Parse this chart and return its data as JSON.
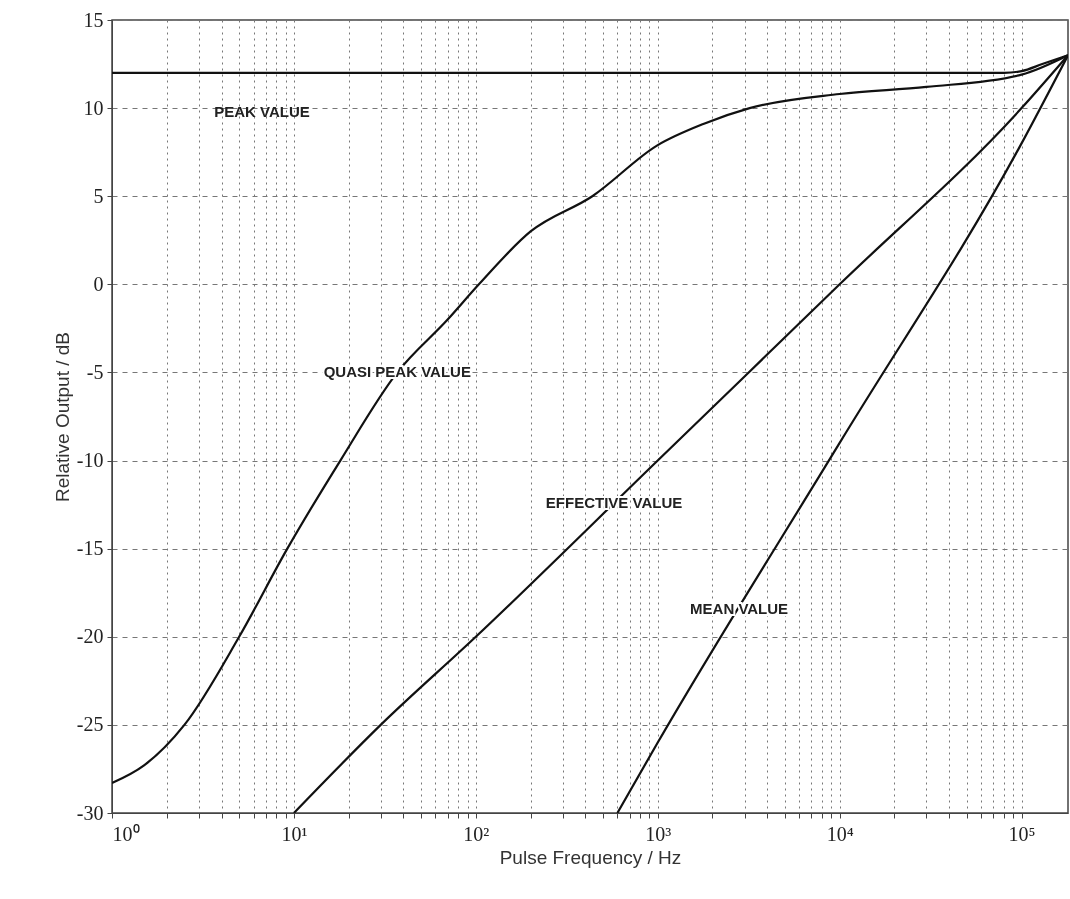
{
  "chart_data": {
    "type": "line",
    "xlabel": "Pulse Frequency / Hz",
    "ylabel": "Relative Output / dB",
    "log": "x",
    "grid": true,
    "line_style": "solid",
    "marker": "none",
    "xlim": [
      1,
      180000
    ],
    "ylim": [
      -30,
      15
    ],
    "xticks": [
      {
        "value": 1,
        "label": "10⁰"
      },
      {
        "value": 2,
        "label": null
      },
      {
        "value": 3,
        "label": null
      },
      {
        "value": 4,
        "label": null
      },
      {
        "value": 5,
        "label": null
      },
      {
        "value": 6,
        "label": null
      },
      {
        "value": 7,
        "label": null
      },
      {
        "value": 8,
        "label": null
      },
      {
        "value": 9,
        "label": null
      },
      {
        "value": 10,
        "label": "10¹"
      },
      {
        "value": 20,
        "label": null
      },
      {
        "value": 30,
        "label": null
      },
      {
        "value": 40,
        "label": null
      },
      {
        "value": 50,
        "label": null
      },
      {
        "value": 60,
        "label": null
      },
      {
        "value": 70,
        "label": null
      },
      {
        "value": 80,
        "label": null
      },
      {
        "value": 90,
        "label": null
      },
      {
        "value": 100,
        "label": "10²"
      },
      {
        "value": 200,
        "label": null
      },
      {
        "value": 300,
        "label": null
      },
      {
        "value": 400,
        "label": null
      },
      {
        "value": 500,
        "label": null
      },
      {
        "value": 600,
        "label": null
      },
      {
        "value": 700,
        "label": null
      },
      {
        "value": 800,
        "label": null
      },
      {
        "value": 900,
        "label": null
      },
      {
        "value": 1000,
        "label": "10³"
      },
      {
        "value": 2000,
        "label": null
      },
      {
        "value": 3000,
        "label": null
      },
      {
        "value": 4000,
        "label": null
      },
      {
        "value": 5000,
        "label": null
      },
      {
        "value": 6000,
        "label": null
      },
      {
        "value": 7000,
        "label": null
      },
      {
        "value": 8000,
        "label": null
      },
      {
        "value": 9000,
        "label": null
      },
      {
        "value": 10000,
        "label": "10⁴"
      },
      {
        "value": 20000,
        "label": null
      },
      {
        "value": 30000,
        "label": null
      },
      {
        "value": 40000,
        "label": null
      },
      {
        "value": 50000,
        "label": null
      },
      {
        "value": 60000,
        "label": null
      },
      {
        "value": 70000,
        "label": null
      },
      {
        "value": 80000,
        "label": null
      },
      {
        "value": 90000,
        "label": null
      },
      {
        "value": 100000,
        "label": "10⁵"
      }
    ],
    "yticks": [
      -30,
      -25,
      -20,
      -15,
      -10,
      -5,
      0,
      5,
      10,
      15
    ],
    "series": [
      {
        "color": "#111111",
        "x": [
          1,
          80000,
          100000,
          130000,
          180000
        ],
        "values": [
          12,
          12,
          12.1,
          12.5,
          13
        ]
      },
      {
        "color": "#111111",
        "x": [
          1,
          1.5,
          2.5,
          5,
          9.2,
          18,
          37,
          70,
          104,
          200,
          437,
          1000,
          1780,
          3200,
          10000,
          30000,
          100000,
          180000
        ],
        "values": [
          -28.3,
          -27.3,
          -25,
          -20,
          -15,
          -10,
          -5,
          -2,
          0,
          3,
          5,
          7.9,
          9.1,
          10,
          10.8,
          11.2,
          11.9,
          13
        ]
      },
      {
        "color": "#111111",
        "x": [
          10,
          30,
          100,
          1000,
          10000,
          100000,
          180000
        ],
        "values": [
          -30,
          -25,
          -20,
          -10,
          0,
          10,
          13
        ]
      },
      {
        "color": "#111111",
        "x": [
          600,
          1000,
          10000,
          100000,
          180000
        ],
        "values": [
          -30,
          -26,
          -9,
          8,
          13
        ]
      }
    ],
    "annotations": [
      "PEAK VALUE",
      {
        "text": "QUASI PEAK VALUE",
        "x": 37,
        "y": -5
      },
      {
        "text": "EFFECTIVE VALUE",
        "x": 575,
        "y": -12.4
      },
      {
        "text": "MEAN VALUE",
        "x": 2800,
        "y": -18.4
      }
    ]
  }
}
